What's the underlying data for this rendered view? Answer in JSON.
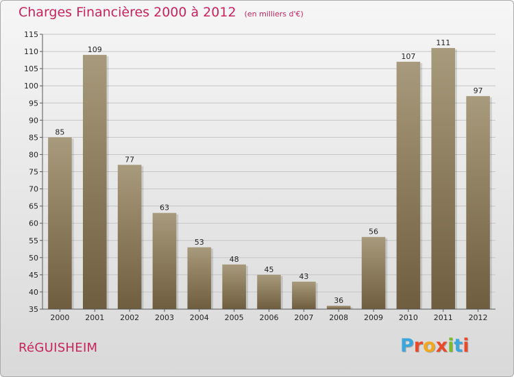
{
  "header": {
    "title": "Charges Financières 2000 à 2012",
    "subtitle": "(en milliers d'€)"
  },
  "footer": {
    "city": "RéGUISHEIM",
    "logo": {
      "text": "Proxiti",
      "letters": [
        {
          "ch": "P",
          "color": "#3aa6dc"
        },
        {
          "ch": "r",
          "color": "#e94b2a"
        },
        {
          "ch": "o",
          "color": "#f2a81d"
        },
        {
          "ch": "x",
          "color": "#e94b2a"
        },
        {
          "ch": "i",
          "color": "#7dbb2a"
        },
        {
          "ch": "t",
          "color": "#3aa6dc"
        },
        {
          "ch": "i",
          "color": "#e94b2a"
        }
      ]
    }
  },
  "colors": {
    "title": "#c8245c",
    "bar_light": "#a89a7c",
    "bar_dark": "#6f5d3f"
  },
  "chart_data": {
    "type": "bar",
    "title": "Charges Financières 2000 à 2012",
    "subtitle": "(en milliers d'€)",
    "categories": [
      "2000",
      "2001",
      "2002",
      "2003",
      "2004",
      "2005",
      "2006",
      "2007",
      "2008",
      "2009",
      "2010",
      "2011",
      "2012"
    ],
    "values": [
      85,
      109,
      77,
      63,
      53,
      48,
      45,
      43,
      36,
      56,
      107,
      111,
      97
    ],
    "ylim": [
      35,
      115
    ],
    "yticks": [
      35,
      40,
      45,
      50,
      55,
      60,
      65,
      70,
      75,
      80,
      85,
      90,
      95,
      100,
      105,
      110,
      115
    ],
    "xlabel": "",
    "ylabel": "",
    "grid": true
  }
}
